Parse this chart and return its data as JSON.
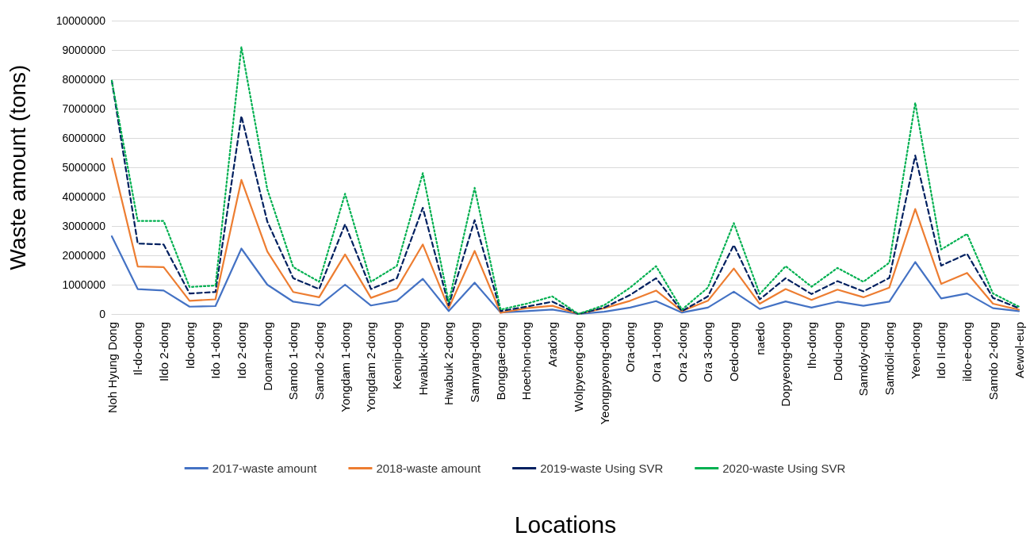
{
  "chart_data": {
    "type": "line",
    "xlabel": "Locations",
    "ylabel": "Waste amount (tons)",
    "categories": [
      "Noh Hyung Dong",
      "Il-do-dong",
      "Ildo 2-dong",
      "Ido-dong",
      "Ido 1-dong",
      "Ido 2-dong",
      "Donam-dong",
      "Samdo 1-dong",
      "Samdo 2-dong",
      "Yongdam 1-dong",
      "Yongdam 2-dong",
      "Keonip-dong",
      "Hwabuk-dong",
      "Hwabuk 2-dong",
      "Samyang-dong",
      "Bonggae-dong",
      "Hoechon-dong",
      "Aradong",
      "Wolpyeong-dong",
      "Yeongpyeong-dong",
      "Ora-dong",
      "Ora 1-dong",
      "Ora 2-dong",
      "Ora 3-dong",
      "Oedo-dong",
      "naedo",
      "Dopyeong-dong",
      "Iho-dong",
      "Dodu-dong",
      "Samdoy-dong",
      "Samdoil-dong",
      "Yeon-dong",
      "Ido II-dong",
      "ildo-e-dong",
      "Samdo 2-dong",
      "Aewol-eup"
    ],
    "series": [
      {
        "name": "2017-waste amount",
        "color": "#4472c4",
        "line_style": "solid",
        "values": [
          2650000,
          850000,
          800000,
          250000,
          270000,
          2230000,
          1000000,
          420000,
          290000,
          1000000,
          290000,
          450000,
          1200000,
          100000,
          1070000,
          50000,
          100000,
          150000,
          0,
          80000,
          220000,
          440000,
          50000,
          220000,
          760000,
          170000,
          430000,
          220000,
          420000,
          280000,
          420000,
          1770000,
          530000,
          700000,
          200000,
          100000
        ]
      },
      {
        "name": "2018-waste amount",
        "color": "#ed7d31",
        "line_style": "solid",
        "values": [
          5300000,
          1620000,
          1600000,
          450000,
          500000,
          4570000,
          2130000,
          750000,
          570000,
          2030000,
          550000,
          870000,
          2370000,
          200000,
          2150000,
          40000,
          200000,
          280000,
          0,
          200000,
          450000,
          800000,
          100000,
          450000,
          1550000,
          350000,
          850000,
          480000,
          830000,
          570000,
          900000,
          3580000,
          1030000,
          1400000,
          350000,
          150000
        ]
      },
      {
        "name": "2019-waste Using SVR",
        "color": "#002060",
        "line_style": "dashed",
        "values": [
          7950000,
          2400000,
          2370000,
          700000,
          750000,
          6750000,
          3150000,
          1220000,
          850000,
          3060000,
          850000,
          1220000,
          3620000,
          300000,
          3200000,
          100000,
          250000,
          420000,
          0,
          220000,
          650000,
          1220000,
          100000,
          600000,
          2350000,
          500000,
          1220000,
          680000,
          1120000,
          770000,
          1230000,
          5400000,
          1650000,
          2050000,
          550000,
          200000
        ]
      },
      {
        "name": "2020-waste Using SVR",
        "color": "#00b050",
        "line_style": "dotted",
        "values": [
          7950000,
          3170000,
          3170000,
          920000,
          970000,
          9100000,
          4250000,
          1600000,
          1100000,
          4100000,
          1100000,
          1640000,
          4800000,
          400000,
          4300000,
          150000,
          350000,
          600000,
          0,
          300000,
          900000,
          1630000,
          150000,
          900000,
          3100000,
          680000,
          1630000,
          930000,
          1570000,
          1100000,
          1750000,
          7200000,
          2200000,
          2730000,
          700000,
          250000
        ]
      }
    ],
    "ylim": [
      0,
      10000000
    ],
    "yticks": [
      0,
      1000000,
      2000000,
      3000000,
      4000000,
      5000000,
      6000000,
      7000000,
      8000000,
      9000000,
      10000000
    ],
    "grid": "y",
    "legend": "bottom",
    "marker": "none"
  }
}
